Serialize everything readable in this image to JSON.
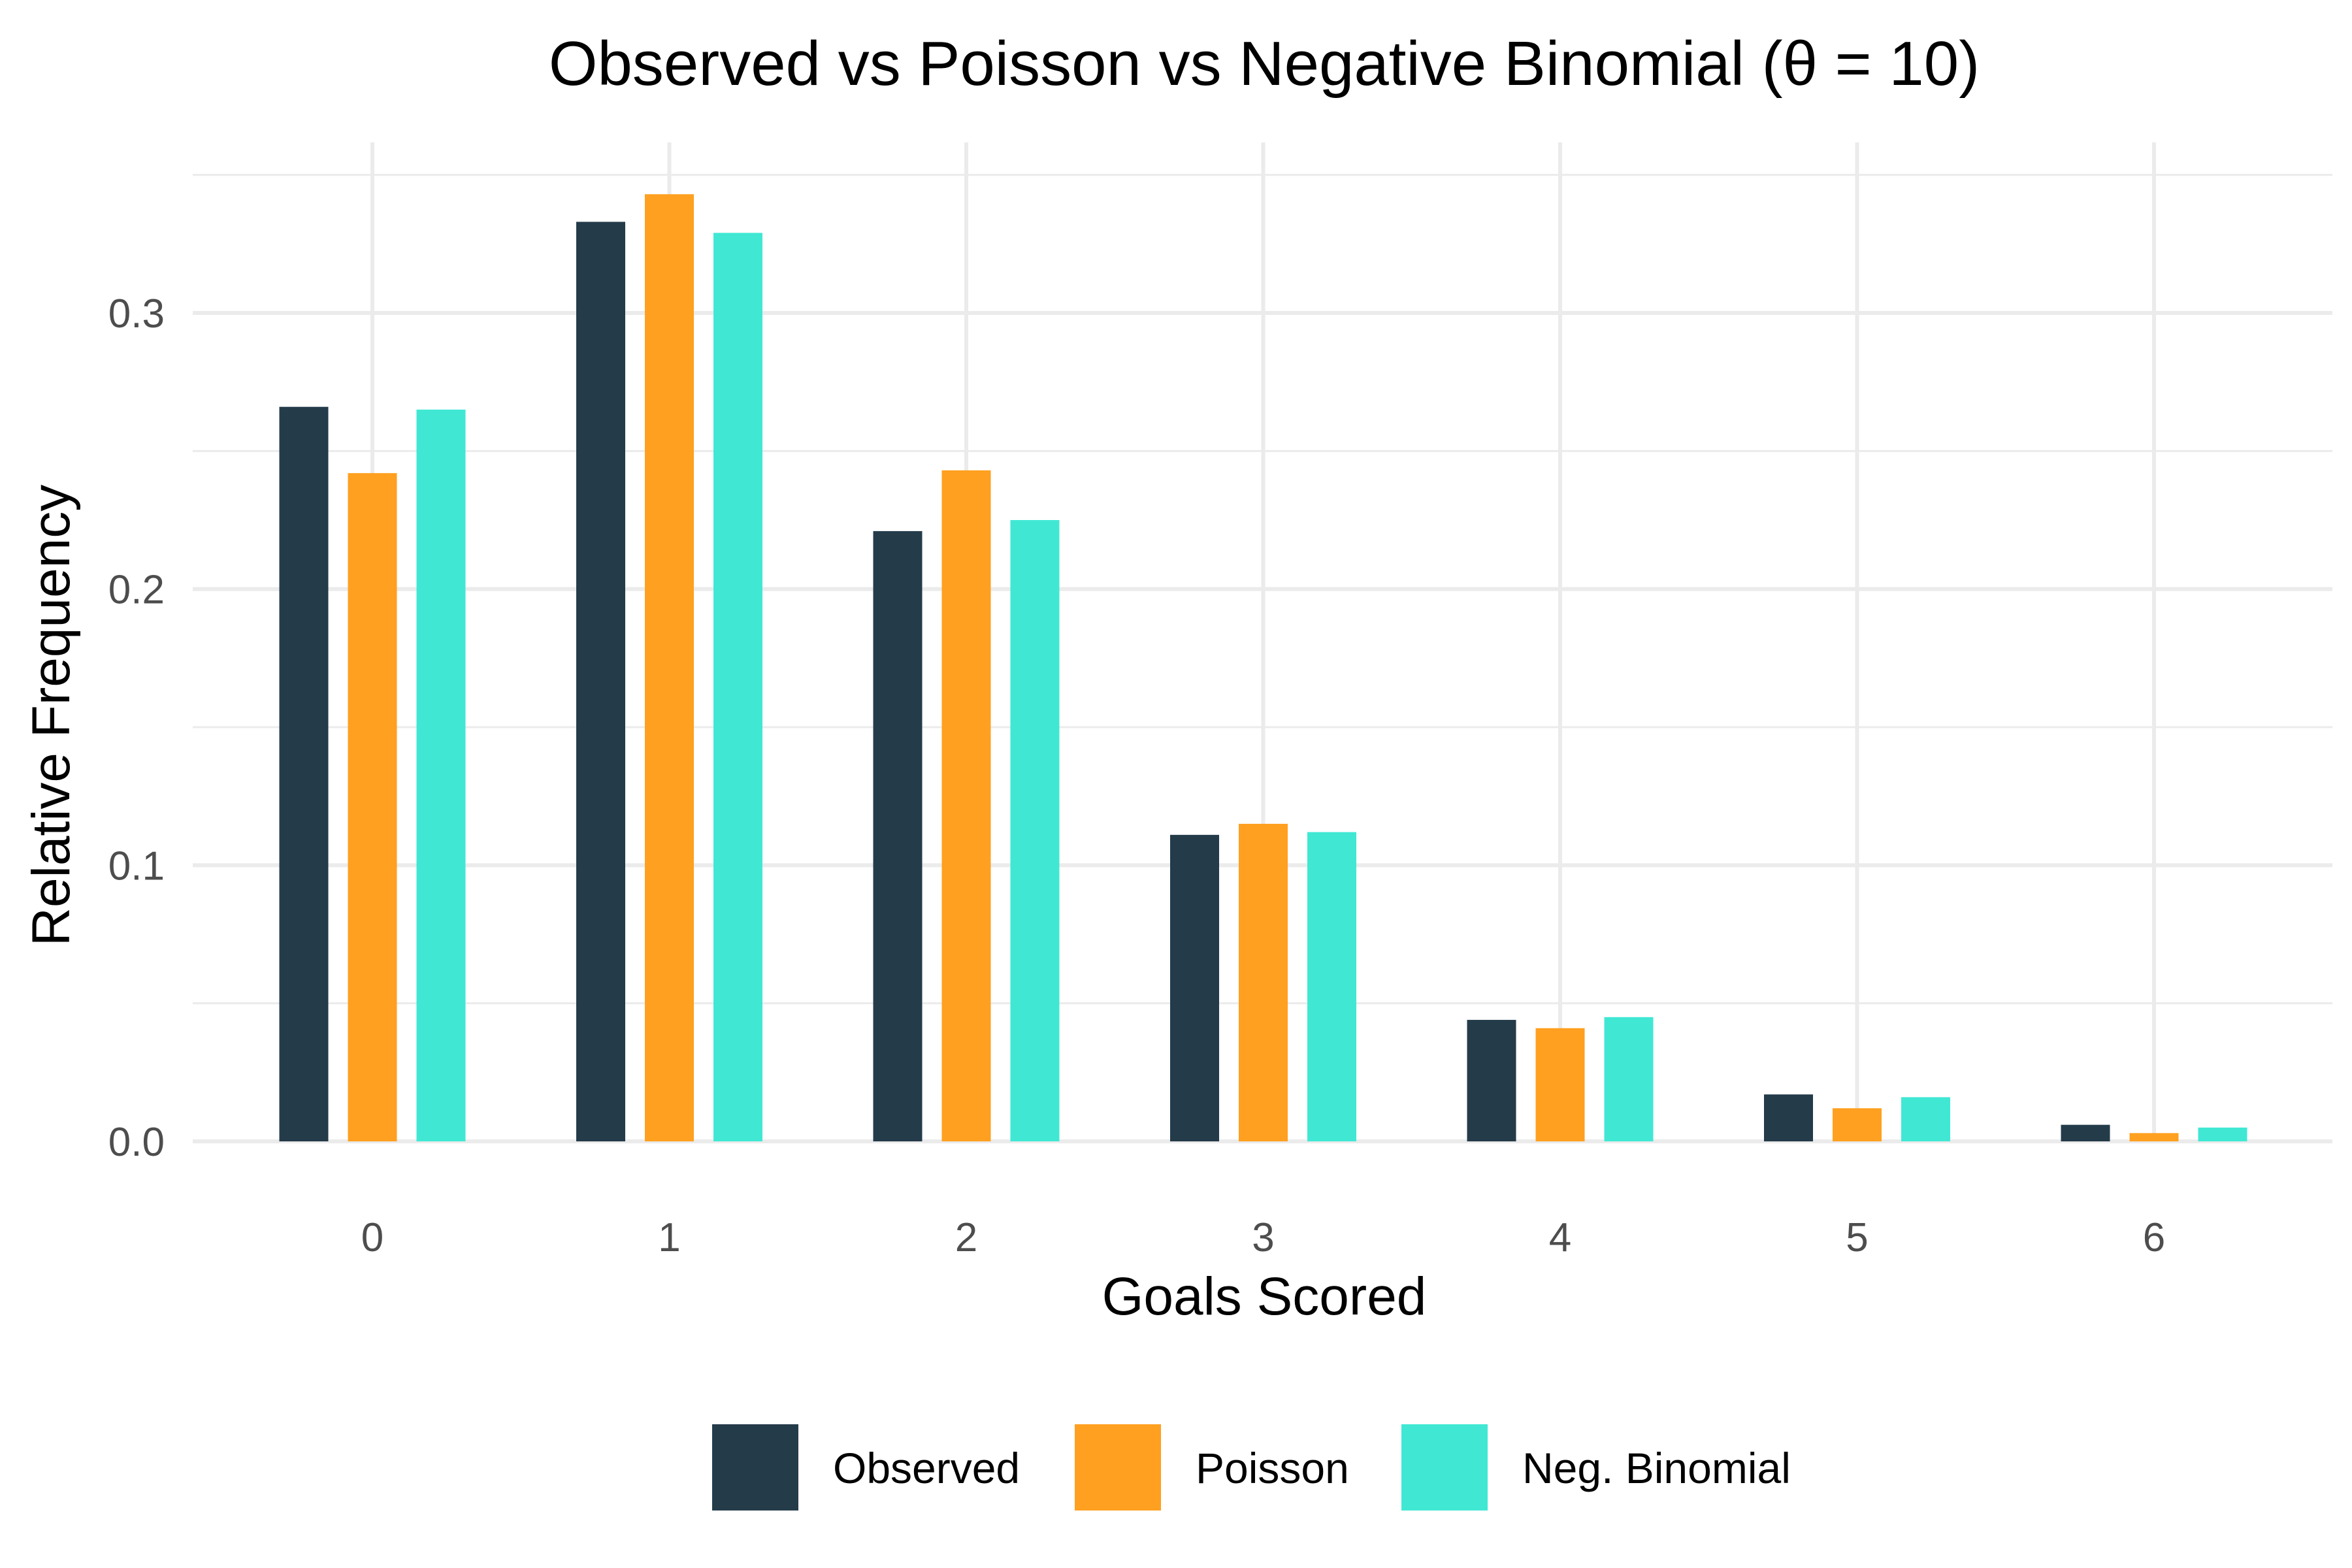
{
  "chart_data": {
    "type": "bar",
    "title": "Observed vs Poisson vs Negative Binomial (θ = 10)",
    "xlabel": "Goals Scored",
    "ylabel": "Relative Frequency",
    "categories": [
      "0",
      "1",
      "2",
      "3",
      "4",
      "5",
      "6"
    ],
    "yticks": [
      0.0,
      0.1,
      0.2,
      0.3
    ],
    "ytick_labels": [
      "0.0",
      "0.1",
      "0.2",
      "0.3"
    ],
    "ylim": [
      0,
      0.36
    ],
    "grid": true,
    "legend_position": "bottom",
    "series": [
      {
        "name": "Observed",
        "color": "#243B4A",
        "values": [
          0.266,
          0.333,
          0.221,
          0.111,
          0.044,
          0.017,
          0.006
        ]
      },
      {
        "name": "Poisson",
        "color": "#FFA020",
        "values": [
          0.242,
          0.343,
          0.243,
          0.115,
          0.041,
          0.012,
          0.003
        ]
      },
      {
        "name": "Neg. Binomial",
        "color": "#40E8D4",
        "values": [
          0.265,
          0.329,
          0.225,
          0.112,
          0.045,
          0.016,
          0.005
        ]
      }
    ]
  }
}
